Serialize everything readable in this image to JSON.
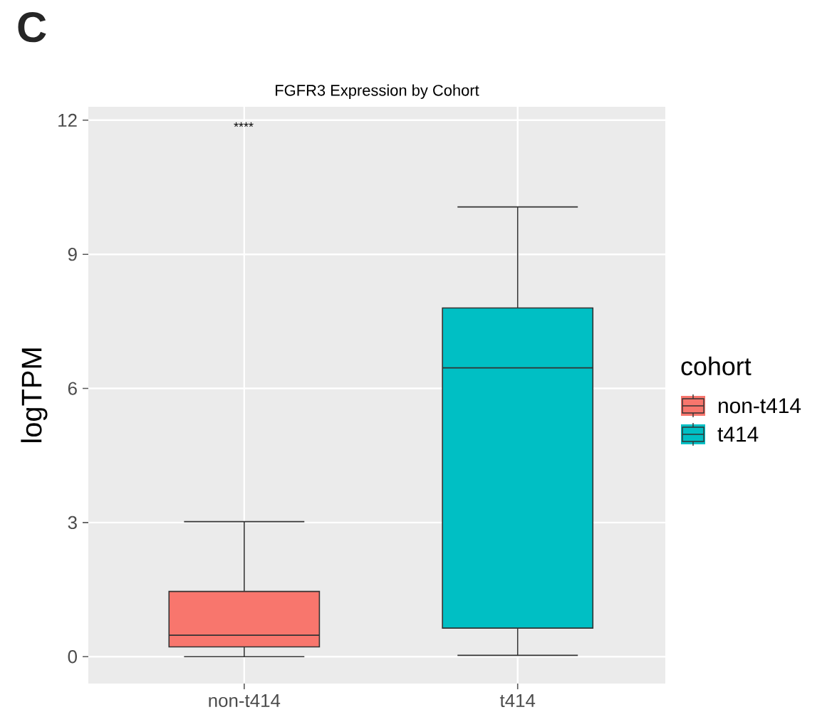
{
  "chart_data": {
    "type": "box",
    "title": "FGFR3 Expression by Cohort",
    "ylabel": "logTPM",
    "legend_title": "cohort",
    "legend": "right",
    "grid": true,
    "categories": [
      "non-t414",
      "t414"
    ],
    "ylim": [
      -0.6,
      12.3
    ],
    "yticks": [
      0,
      3,
      6,
      9,
      12
    ],
    "series": [
      {
        "name": "non-t414",
        "color": "#f8766d",
        "boxes": [
          {
            "low": 0.0,
            "q1": 0.22,
            "median": 0.48,
            "q3": 1.46,
            "high": 3.02
          },
          null
        ]
      },
      {
        "name": "t414",
        "color": "#00bfc4",
        "boxes": [
          null,
          {
            "low": 0.03,
            "q1": 0.64,
            "median": 6.46,
            "q3": 7.8,
            "high": 10.06
          }
        ]
      }
    ],
    "annotations": [
      "C",
      "****"
    ]
  }
}
